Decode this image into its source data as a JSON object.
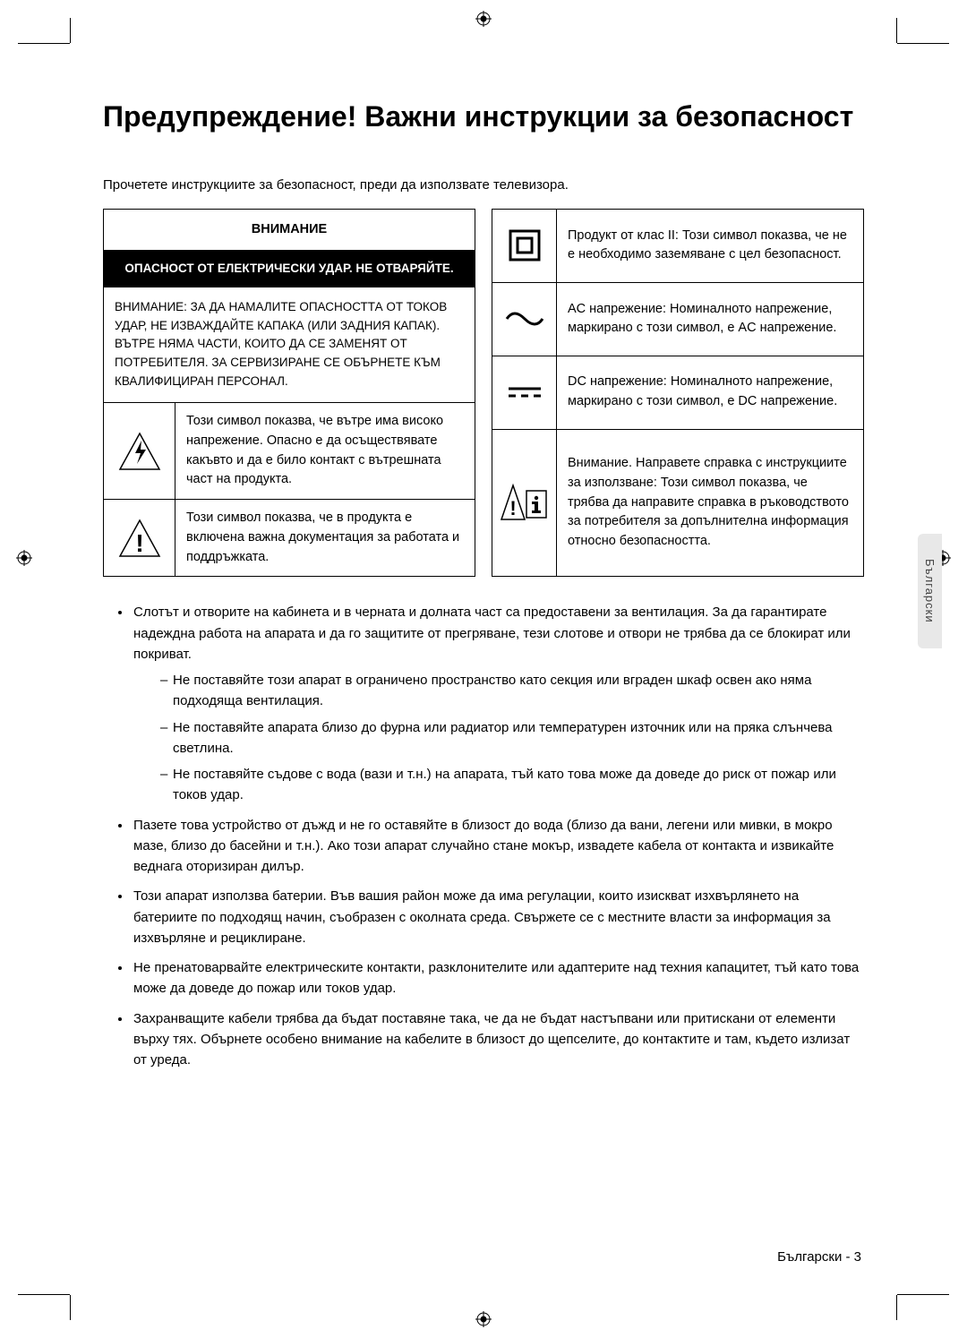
{
  "title": "Предупреждение! Важни инструкции за безопасност",
  "intro": "Прочетете инструкциите за безопасност, преди да използвате телевизора.",
  "left": {
    "caution": "ВНИМАНИЕ",
    "risk": "ОПАСНОСТ ОТ ЕЛЕКТРИЧЕСКИ УДАР. НЕ ОТВАРЯЙТЕ.",
    "body": "ВНИМАНИЕ: ЗА ДА НАМАЛИТЕ ОПАСНОСТТА ОТ ТОКОВ УДАР, НЕ ИЗВАЖДАЙТЕ КАПАКА (ИЛИ ЗАДНИЯ КАПАК). ВЪТРЕ НЯМА ЧАСТИ, КОИТО ДА СЕ ЗАМЕНЯТ ОТ ПОТРЕБИТЕЛЯ. ЗА СЕРВИЗИРАНЕ СЕ ОБЪРНЕТЕ КЪМ КВАЛИФИЦИРАН ПЕРСОНАЛ.",
    "row1": "Този символ показва, че вътре има високо напрежение. Опасно е да осъществявате какъвто и да е било контакт с вътрешната част на продукта.",
    "row2": "Този символ показва, че в продукта е включена важна документация за работата и поддръжката."
  },
  "right": {
    "r1": "Продукт от клас II: Този символ показва, че не е необходимо заземяване с цел безопасност.",
    "r2": "AC напрежение: Номиналното напрежение, маркирано с този символ, е AC напрежение.",
    "r3": "DC напрежение: Номиналното напрежение, маркирано с този символ, е DC напрежение.",
    "r4": "Внимание. Направете справка с инструкциите за използване: Този символ показва, че трябва да направите справка в ръководството за потребителя за допълнителна информация относно безопасността."
  },
  "bullets": [
    {
      "text": "Слотът и отворите на кабинета и в черната и долната част са предоставени за вентилация. За да гарантирате надеждна работа на апарата и да го защитите от прегряване, тези слотове и отвори не трябва да се блокират или покриват.",
      "sub": [
        "Не поставяйте този апарат в ограничено пространство като секция или вграден шкаф освен ако няма подходяща вентилация.",
        "Не поставяйте апарата близо до фурна или радиатор или температурен източник или на пряка слънчева светлина.",
        "Не поставяйте съдове с вода (вази и т.н.) на апарата, тъй като това може да доведе до риск от пожар или токов удар."
      ]
    },
    {
      "text": "Пазете това устройство от дъжд и не го оставяйте в близост до вода (близо да вани, легени или мивки, в мокро мазе, близо до басейни и т.н.). Ако този апарат случайно стане мокър, извадете кабела от контакта и извикайте веднага оторизиран дилър."
    },
    {
      "text": "Този апарат използва батерии. Във вашия район може да има регулации, които изискват изхвърлянето на батериите по подходящ начин, съобразен с околната среда. Свържете се с местните власти за информация за изхвърляне и рециклиране."
    },
    {
      "text": "Не пренатоварвайте електрическите контакти, разклонителите или адаптерите над техния капацитет, тъй като това може да доведе до пожар или токов удар."
    },
    {
      "text": "Захранващите кабели трябва да бъдат поставяне така, че да не бъдат настъпвани или притискани от елементи върху тях. Обърнете особено внимание на кабелите в близост до щепселите, до контактите и там, където излизат от уреда."
    }
  ],
  "sideTab": "Български",
  "footer": "Български - 3",
  "colors": {
    "text": "#000000",
    "bg": "#ffffff",
    "invert_bg": "#000000",
    "invert_text": "#ffffff",
    "tab_bg": "#e8e8e8",
    "tab_text": "#444444"
  }
}
